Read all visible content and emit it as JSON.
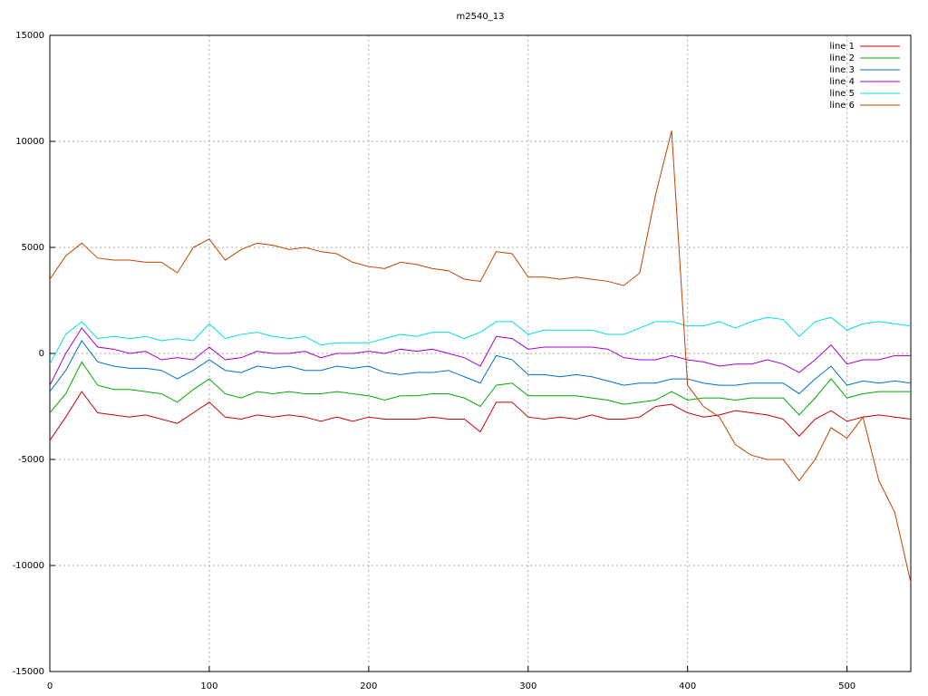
{
  "chart_data": {
    "type": "line",
    "title": "m2540_13",
    "x": [
      0,
      10,
      20,
      30,
      40,
      50,
      60,
      70,
      80,
      90,
      100,
      110,
      120,
      130,
      140,
      150,
      160,
      170,
      180,
      190,
      200,
      210,
      220,
      230,
      240,
      250,
      260,
      270,
      280,
      290,
      300,
      310,
      320,
      330,
      340,
      350,
      360,
      370,
      380,
      390,
      400,
      410,
      420,
      430,
      440,
      450,
      460,
      470,
      480,
      490,
      500,
      510,
      520,
      530,
      540
    ],
    "series": [
      {
        "name": "line 1",
        "color": "#cc0000",
        "values": [
          -4100,
          -3000,
          -1800,
          -2800,
          -2900,
          -3000,
          -2900,
          -3100,
          -3300,
          -2800,
          -2300,
          -3000,
          -3100,
          -2900,
          -3000,
          -2900,
          -3000,
          -3200,
          -3000,
          -3200,
          -3000,
          -3100,
          -3100,
          -3100,
          -3000,
          -3100,
          -3100,
          -3700,
          -2300,
          -2300,
          -3000,
          -3100,
          -3000,
          -3100,
          -2900,
          -3100,
          -3100,
          -3000,
          -2500,
          -2400,
          -2800,
          -3000,
          -2900,
          -2700,
          -2800,
          -2900,
          -3100,
          -3900,
          -3100,
          -2700,
          -3200,
          -3000,
          -2900,
          -3000,
          -3100
        ]
      },
      {
        "name": "line 2",
        "color": "#00aa00",
        "values": [
          -2800,
          -1900,
          -400,
          -1500,
          -1700,
          -1700,
          -1800,
          -1900,
          -2300,
          -1700,
          -1200,
          -1900,
          -2100,
          -1800,
          -1900,
          -1800,
          -1900,
          -1900,
          -1800,
          -1900,
          -2000,
          -2200,
          -2000,
          -2000,
          -1900,
          -1900,
          -2100,
          -2500,
          -1500,
          -1400,
          -2000,
          -2000,
          -2000,
          -2000,
          -2100,
          -2200,
          -2400,
          -2300,
          -2200,
          -1800,
          -2200,
          -2100,
          -2100,
          -2200,
          -2100,
          -2100,
          -2100,
          -2900,
          -2100,
          -1200,
          -2100,
          -1900,
          -1800,
          -1800,
          -1800
        ]
      },
      {
        "name": "line 3",
        "color": "#0070c8",
        "values": [
          -1800,
          -800,
          600,
          -400,
          -600,
          -700,
          -700,
          -800,
          -1200,
          -800,
          -300,
          -800,
          -900,
          -600,
          -700,
          -600,
          -800,
          -800,
          -600,
          -700,
          -600,
          -900,
          -1000,
          -900,
          -900,
          -800,
          -1100,
          -1400,
          -100,
          -300,
          -1000,
          -1000,
          -1100,
          -1000,
          -1100,
          -1300,
          -1500,
          -1400,
          -1400,
          -1200,
          -1200,
          -1400,
          -1500,
          -1500,
          -1400,
          -1400,
          -1400,
          -1900,
          -1200,
          -600,
          -1500,
          -1300,
          -1400,
          -1300,
          -1400
        ]
      },
      {
        "name": "line 4",
        "color": "#a000d0",
        "values": [
          -1500,
          0,
          1200,
          300,
          200,
          0,
          100,
          -300,
          -200,
          -300,
          300,
          -300,
          -200,
          100,
          0,
          0,
          100,
          -200,
          0,
          0,
          100,
          0,
          200,
          100,
          200,
          0,
          -200,
          -600,
          800,
          700,
          200,
          300,
          300,
          300,
          300,
          200,
          -200,
          -300,
          -300,
          -100,
          -300,
          -400,
          -600,
          -500,
          -500,
          -300,
          -500,
          -900,
          -300,
          400,
          -500,
          -300,
          -300,
          -100,
          -100
        ]
      },
      {
        "name": "line 5",
        "color": "#00dede",
        "values": [
          -500,
          900,
          1500,
          700,
          800,
          700,
          800,
          600,
          700,
          600,
          1400,
          700,
          900,
          1000,
          800,
          700,
          800,
          400,
          500,
          500,
          500,
          700,
          900,
          800,
          1000,
          1000,
          700,
          1000,
          1500,
          1500,
          900,
          1100,
          1100,
          1100,
          1100,
          900,
          900,
          1200,
          1500,
          1500,
          1300,
          1300,
          1500,
          1200,
          1500,
          1700,
          1600,
          800,
          1500,
          1700,
          1100,
          1400,
          1500,
          1400,
          1300
        ]
      },
      {
        "name": "line 6",
        "color": "#c04400",
        "values": [
          3500,
          4600,
          5200,
          4500,
          4400,
          4400,
          4300,
          4300,
          3800,
          5000,
          5400,
          4400,
          4900,
          5200,
          5100,
          4900,
          5000,
          4800,
          4700,
          4300,
          4100,
          4000,
          4300,
          4200,
          4000,
          3900,
          3500,
          3400,
          4800,
          4700,
          3600,
          3600,
          3500,
          3600,
          3500,
          3400,
          3200,
          3800,
          7500,
          10500,
          -1500,
          -2500,
          -3000,
          -4300,
          -4800,
          -5000,
          -5000,
          -6000,
          -5000,
          -3500,
          -4000,
          -3000,
          -6000,
          -7500,
          -10800
        ]
      }
    ],
    "xlim": [
      0,
      540
    ],
    "xticks": [
      0,
      100,
      200,
      300,
      400,
      500
    ],
    "ylim": [
      -15000,
      15000
    ],
    "yticks": [
      -15000,
      -10000,
      -5000,
      0,
      5000,
      10000,
      15000
    ],
    "grid": true,
    "legend": "top-right"
  }
}
